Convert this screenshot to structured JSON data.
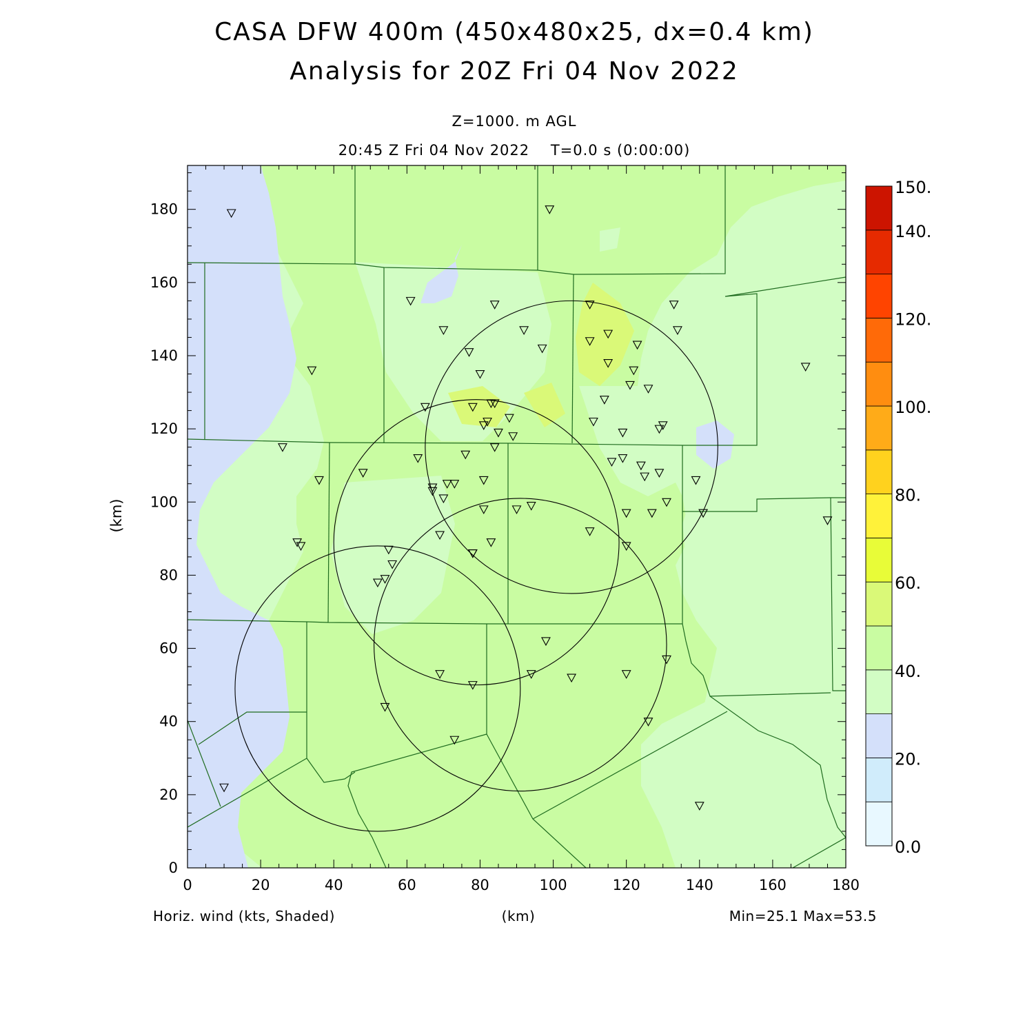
{
  "title_line1": "CASA DFW 400m (450x480x25, dx=0.4 km)",
  "title_line2": "Analysis for 20Z Fri 04 Nov 2022",
  "level_label": "Z=1000. m AGL",
  "time_label": "20:45 Z Fri 04 Nov 2022    T=0.0 s (0:00:00)",
  "axes": {
    "x_label": "(km)",
    "y_label": "(km)",
    "x_ticks": [
      "0",
      "20",
      "40",
      "60",
      "80",
      "100",
      "120",
      "140",
      "160",
      "180"
    ],
    "y_ticks": [
      "0",
      "20",
      "40",
      "60",
      "80",
      "100",
      "120",
      "140",
      "160",
      "180"
    ]
  },
  "footer": {
    "variable": "Horiz. wind (kts, Shaded)",
    "minmax": "Min=25.1 Max=53.5"
  },
  "colorbar": {
    "labels": [
      "0.0",
      "20.",
      "40.",
      "60.",
      "80.",
      "100.",
      "120.",
      "140.",
      "150."
    ],
    "colors": [
      "#e8f8ff",
      "#d0ecfb",
      "#d4e0fa",
      "#d2fdc4",
      "#c9fca2",
      "#daf978",
      "#e8fc38",
      "#fff23a",
      "#ffd21e",
      "#ffab18",
      "#ff8d10",
      "#ff6a08",
      "#ff4400",
      "#e62a00",
      "#cc1400",
      "#b20000"
    ]
  },
  "map_colors": {
    "blue_shade": "#d4e0fa",
    "green_light": "#d2fdc4",
    "green_mid": "#c9fca2",
    "county_lines": "#1f6b1f"
  },
  "chart_data": {
    "type": "map",
    "xlim": [
      0,
      180
    ],
    "ylim": [
      0,
      192
    ],
    "radar_rings": [
      {
        "cx": 52,
        "cy": 49,
        "r": 39
      },
      {
        "cx": 79,
        "cy": 89,
        "r": 39
      },
      {
        "cx": 91,
        "cy": 61,
        "r": 40
      },
      {
        "cx": 105,
        "cy": 115,
        "r": 40
      }
    ],
    "stations": [
      [
        12,
        179
      ],
      [
        99,
        180
      ],
      [
        61,
        155
      ],
      [
        84,
        154
      ],
      [
        110,
        154
      ],
      [
        133,
        154
      ],
      [
        70,
        147
      ],
      [
        92,
        147
      ],
      [
        134,
        147
      ],
      [
        110,
        144
      ],
      [
        115,
        146
      ],
      [
        123,
        143
      ],
      [
        77,
        141
      ],
      [
        97,
        142
      ],
      [
        34,
        136
      ],
      [
        115,
        138
      ],
      [
        122,
        136
      ],
      [
        169,
        137
      ],
      [
        80,
        135
      ],
      [
        121,
        132
      ],
      [
        126,
        131
      ],
      [
        65,
        126
      ],
      [
        78,
        126
      ],
      [
        83,
        127
      ],
      [
        84,
        127
      ],
      [
        114,
        128
      ],
      [
        88,
        123
      ],
      [
        111,
        122
      ],
      [
        82,
        122
      ],
      [
        81,
        121
      ],
      [
        130,
        121
      ],
      [
        129,
        120
      ],
      [
        85,
        119
      ],
      [
        89,
        118
      ],
      [
        119,
        119
      ],
      [
        84,
        115
      ],
      [
        26,
        115
      ],
      [
        76,
        113
      ],
      [
        63,
        112
      ],
      [
        116,
        111
      ],
      [
        119,
        112
      ],
      [
        124,
        110
      ],
      [
        125,
        107
      ],
      [
        129,
        108
      ],
      [
        48,
        108
      ],
      [
        36,
        106
      ],
      [
        81,
        106
      ],
      [
        71,
        105
      ],
      [
        73,
        105
      ],
      [
        67,
        104
      ],
      [
        67,
        103
      ],
      [
        139,
        106
      ],
      [
        70,
        101
      ],
      [
        94,
        99
      ],
      [
        90,
        98
      ],
      [
        81,
        98
      ],
      [
        131,
        100
      ],
      [
        127,
        97
      ],
      [
        120,
        97
      ],
      [
        141,
        97
      ],
      [
        175,
        95
      ],
      [
        110,
        92
      ],
      [
        30,
        89
      ],
      [
        31,
        88
      ],
      [
        83,
        89
      ],
      [
        120,
        88
      ],
      [
        69,
        91
      ],
      [
        55,
        87
      ],
      [
        78,
        86
      ],
      [
        78,
        86
      ],
      [
        56,
        83
      ],
      [
        54,
        79
      ],
      [
        52,
        78
      ],
      [
        98,
        62
      ],
      [
        131,
        57
      ],
      [
        69,
        53
      ],
      [
        94,
        53
      ],
      [
        120,
        53
      ],
      [
        105,
        52
      ],
      [
        78,
        50
      ],
      [
        54,
        44
      ],
      [
        126,
        40
      ],
      [
        73,
        35
      ],
      [
        10,
        22
      ],
      [
        140,
        17
      ]
    ]
  }
}
